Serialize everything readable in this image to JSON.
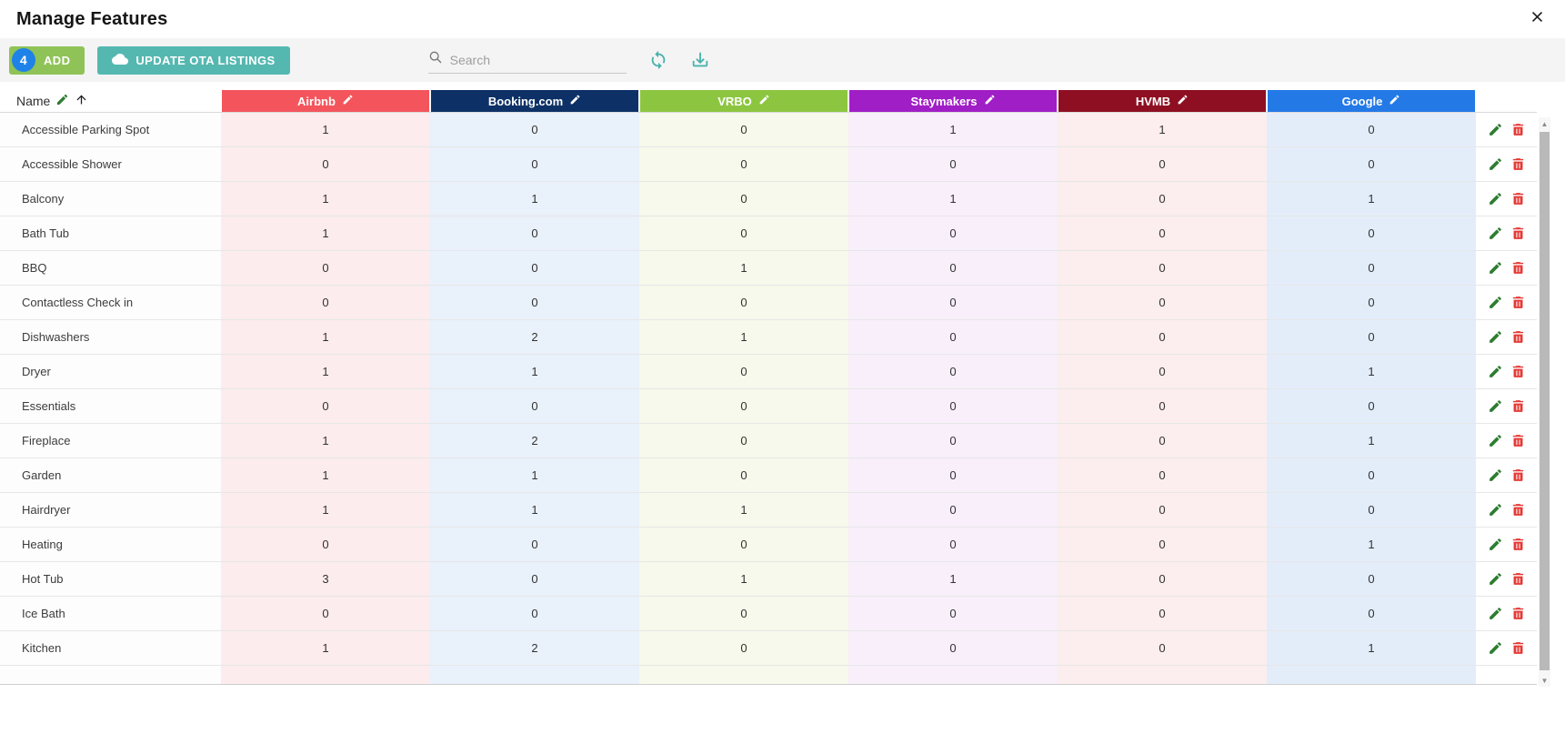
{
  "modal": {
    "title": "Manage Features",
    "close_icon": "close-x"
  },
  "toolbar": {
    "add_badge_count": "4",
    "add_label": "ADD",
    "add_color": "#8fc357",
    "badge_color": "#1e82e8",
    "update_label": "UPDATE OTA LISTINGS",
    "update_color": "#54b8b1",
    "search_placeholder": "Search",
    "icon_color": "#48b2ac",
    "icons": [
      "cloud-icon",
      "search-icon",
      "refresh-icon",
      "download-icon"
    ]
  },
  "table": {
    "name_header": "Name",
    "name_header_icons": [
      "edit-pencil-icon",
      "sort-ascending-arrow"
    ],
    "action_colors": {
      "edit": "#2e7d32",
      "delete": "#e53935"
    },
    "columns": [
      {
        "label": "Airbnb",
        "color": "#f4555d",
        "tint": "#fceced"
      },
      {
        "label": "Booking.com",
        "color": "#0d3166",
        "tint": "#e9f1fb"
      },
      {
        "label": "VRBO",
        "color": "#8cc640",
        "tint": "#f6f9eb"
      },
      {
        "label": "Staymakers",
        "color": "#a01ec6",
        "tint": "#f8effb"
      },
      {
        "label": "HVMB",
        "color": "#8e0f22",
        "tint": "#fcedee"
      },
      {
        "label": "Google",
        "color": "#2379e6",
        "tint": "#e3edfa"
      }
    ],
    "rows": [
      {
        "name": "Accessible Parking Spot",
        "values": [
          1,
          0,
          0,
          1,
          1,
          0
        ]
      },
      {
        "name": "Accessible Shower",
        "values": [
          0,
          0,
          0,
          0,
          0,
          0
        ]
      },
      {
        "name": "Balcony",
        "values": [
          1,
          1,
          0,
          1,
          0,
          1
        ]
      },
      {
        "name": "Bath Tub",
        "values": [
          1,
          0,
          0,
          0,
          0,
          0
        ]
      },
      {
        "name": "BBQ",
        "values": [
          0,
          0,
          1,
          0,
          0,
          0
        ]
      },
      {
        "name": "Contactless Check in",
        "values": [
          0,
          0,
          0,
          0,
          0,
          0
        ]
      },
      {
        "name": "Dishwashers",
        "values": [
          1,
          2,
          1,
          0,
          0,
          0
        ]
      },
      {
        "name": "Dryer",
        "values": [
          1,
          1,
          0,
          0,
          0,
          1
        ]
      },
      {
        "name": "Essentials",
        "values": [
          0,
          0,
          0,
          0,
          0,
          0
        ]
      },
      {
        "name": "Fireplace",
        "values": [
          1,
          2,
          0,
          0,
          0,
          1
        ]
      },
      {
        "name": "Garden",
        "values": [
          1,
          1,
          0,
          0,
          0,
          0
        ]
      },
      {
        "name": "Hairdryer",
        "values": [
          1,
          1,
          1,
          0,
          0,
          0
        ]
      },
      {
        "name": "Heating",
        "values": [
          0,
          0,
          0,
          0,
          0,
          1
        ]
      },
      {
        "name": "Hot Tub",
        "values": [
          3,
          0,
          1,
          1,
          0,
          0
        ]
      },
      {
        "name": "Ice Bath",
        "values": [
          0,
          0,
          0,
          0,
          0,
          0
        ]
      },
      {
        "name": "Kitchen",
        "values": [
          1,
          2,
          0,
          0,
          0,
          1
        ]
      }
    ]
  },
  "scrollbar": {
    "up_glyph": "▲",
    "down_glyph": "▼"
  }
}
